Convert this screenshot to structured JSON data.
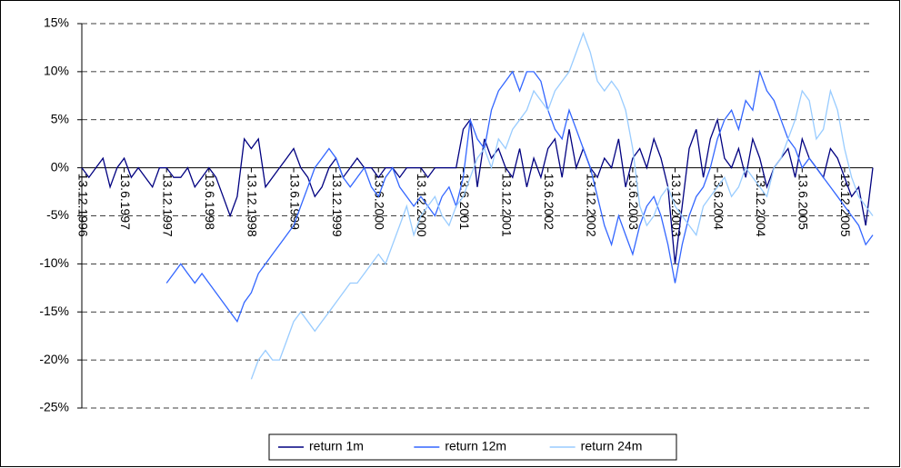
{
  "chart_data": {
    "type": "line",
    "categories": [
      "13.12.1996",
      null,
      null,
      null,
      null,
      null,
      "13.6.1997",
      null,
      null,
      null,
      null,
      null,
      "13.12.1997",
      null,
      null,
      null,
      null,
      null,
      "13.6.1998",
      null,
      null,
      null,
      null,
      null,
      "13.12.1998",
      null,
      null,
      null,
      null,
      null,
      "13.6.1999",
      null,
      null,
      null,
      null,
      null,
      "13.12.1999",
      null,
      null,
      null,
      null,
      null,
      "13.6.2000",
      null,
      null,
      null,
      null,
      null,
      "13.12.2000",
      null,
      null,
      null,
      null,
      null,
      "13.6.2001",
      null,
      null,
      null,
      null,
      null,
      "13.12.2001",
      null,
      null,
      null,
      null,
      null,
      "13.6.2002",
      null,
      null,
      null,
      null,
      null,
      "13.12.2002",
      null,
      null,
      null,
      null,
      null,
      "13.6.2003",
      null,
      null,
      null,
      null,
      null,
      "13.12.2003",
      null,
      null,
      null,
      null,
      null,
      "13.6.2004",
      null,
      null,
      null,
      null,
      null,
      "13.12.2004",
      null,
      null,
      null,
      null,
      null,
      "13.6.2005",
      null,
      null,
      null,
      null,
      null,
      "13.12.2005",
      null,
      null,
      null,
      null
    ],
    "series": [
      {
        "name": "return 1m",
        "color": "#000080",
        "values": [
          0,
          -1,
          0,
          1,
          -2,
          0,
          1,
          -1,
          0,
          -1,
          -2,
          0,
          0,
          -1,
          -1,
          0,
          -2,
          -1,
          0,
          -1,
          -3,
          -5,
          -3,
          3,
          2,
          3,
          -2,
          -1,
          0,
          1,
          2,
          0,
          -1,
          -3,
          -2,
          0,
          1,
          -1,
          0,
          1,
          0,
          0,
          -1,
          0,
          0,
          -1,
          0,
          0,
          0,
          -1,
          0,
          0,
          0,
          0,
          4,
          5,
          -2,
          3,
          1,
          2,
          0,
          -1,
          2,
          -2,
          1,
          -1,
          2,
          3,
          -1,
          4,
          0,
          2,
          0,
          -1,
          1,
          0,
          3,
          -2,
          1,
          2,
          0,
          3,
          1,
          -2,
          -10,
          -4,
          2,
          4,
          -1,
          3,
          5,
          1,
          0,
          2,
          -1,
          3,
          1,
          -2,
          0,
          1,
          2,
          -1,
          3,
          1,
          0,
          -1,
          2,
          1,
          -1,
          -3,
          -2,
          -6,
          0
        ]
      },
      {
        "name": "return 12m",
        "color": "#3366ff",
        "values": [
          null,
          null,
          null,
          null,
          null,
          null,
          null,
          null,
          null,
          null,
          null,
          null,
          -12,
          -11,
          -10,
          -11,
          -12,
          -11,
          -12,
          -13,
          -14,
          -15,
          -16,
          -14,
          -13,
          -11,
          -10,
          -9,
          -8,
          -7,
          -6,
          -4,
          -2,
          0,
          1,
          2,
          1,
          -1,
          -2,
          -1,
          0,
          -2,
          -3,
          -1,
          0,
          -2,
          -3,
          -4,
          -3,
          -4,
          -5,
          -3,
          -2,
          -4,
          -1,
          5,
          3,
          2,
          6,
          8,
          9,
          10,
          8,
          10,
          10,
          9,
          6,
          4,
          3,
          6,
          4,
          2,
          0,
          -3,
          -6,
          -8,
          -5,
          -7,
          -9,
          -6,
          -4,
          -3,
          -5,
          -8,
          -12,
          -8,
          -5,
          -3,
          -2,
          0,
          3,
          5,
          6,
          4,
          7,
          6,
          10,
          8,
          7,
          5,
          3,
          2,
          0,
          1,
          0,
          -1,
          -2,
          -3,
          -4,
          -5,
          -6,
          -8,
          -7
        ]
      },
      {
        "name": "return 24m",
        "color": "#99ccff",
        "values": [
          null,
          null,
          null,
          null,
          null,
          null,
          null,
          null,
          null,
          null,
          null,
          null,
          null,
          null,
          null,
          null,
          null,
          null,
          null,
          null,
          null,
          null,
          null,
          null,
          -22,
          -20,
          -19,
          -20,
          -20,
          -18,
          -16,
          -15,
          -16,
          -17,
          -16,
          -15,
          -14,
          -13,
          -12,
          -12,
          -11,
          -10,
          -9,
          -10,
          -8,
          -6,
          -4,
          -7,
          -5,
          -4,
          -3,
          -5,
          -6,
          -4,
          -3,
          -1,
          1,
          2,
          0,
          3,
          2,
          4,
          5,
          6,
          8,
          7,
          6,
          8,
          9,
          10,
          12,
          14,
          12,
          9,
          8,
          9,
          8,
          6,
          2,
          -4,
          -6,
          -5,
          -3,
          -2,
          -4,
          -5,
          -6,
          -7,
          -4,
          -3,
          -2,
          -1,
          -3,
          -2,
          0,
          -1,
          -2,
          -3,
          0,
          1,
          3,
          5,
          8,
          7,
          3,
          4,
          8,
          6,
          2,
          -1,
          -3,
          -4,
          -5
        ]
      }
    ],
    "ylim": [
      -25,
      15
    ],
    "yticks": [
      {
        "value": -25,
        "label": "-25%"
      },
      {
        "value": -20,
        "label": "-20%"
      },
      {
        "value": -15,
        "label": "-15%"
      },
      {
        "value": -10,
        "label": "-10%"
      },
      {
        "value": -5,
        "label": "-5%"
      },
      {
        "value": 0,
        "label": "0%"
      },
      {
        "value": 5,
        "label": "5%"
      },
      {
        "value": 10,
        "label": "10%"
      },
      {
        "value": 15,
        "label": "15%"
      }
    ],
    "grid": true,
    "legend": "bottom"
  }
}
